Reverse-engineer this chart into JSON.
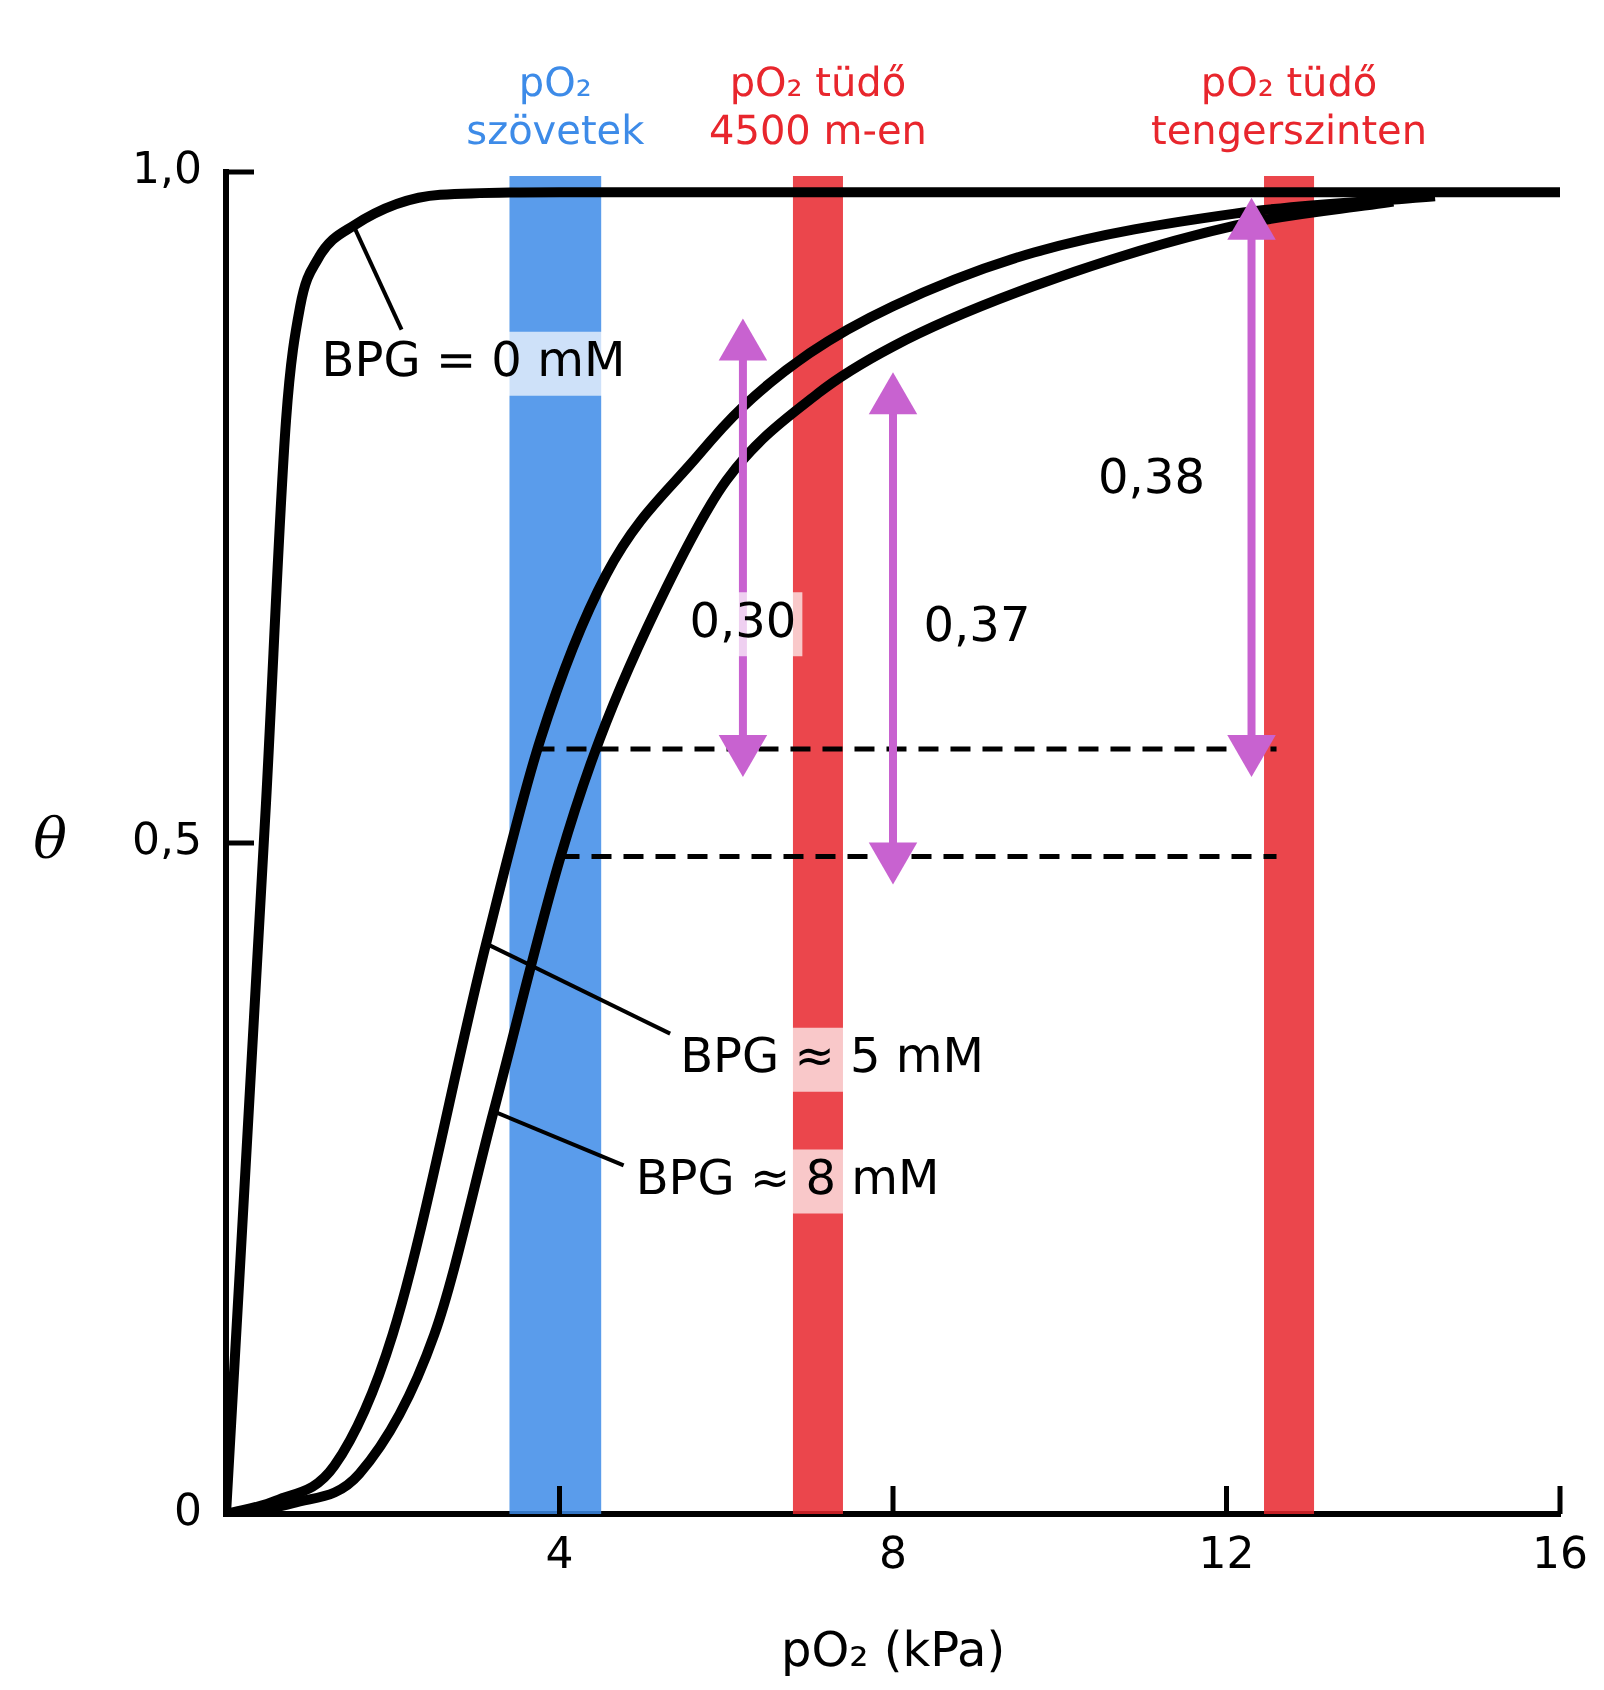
{
  "chart_data": {
    "type": "line",
    "xlabel": "pO₂ (kPa)",
    "ylabel": "θ",
    "xlim": [
      0,
      16
    ],
    "xticks": [
      4,
      8,
      12,
      16
    ],
    "ylim": [
      0,
      1
    ],
    "yticks": [
      0,
      {
        "value": 0.5,
        "label": "0,5"
      },
      {
        "value": 1,
        "label": "1,0"
      }
    ],
    "grid": false,
    "legend": false,
    "marker": "none",
    "series": [
      {
        "color": "#000000",
        "x": [
          0,
          0.48,
          0.72,
          0.89,
          1.1,
          1.53,
          2.57,
          4,
          8,
          16
        ],
        "values": [
          0,
          0.53,
          0.815,
          0.9,
          0.935,
          0.96,
          0.983,
          0.985,
          0.985,
          0.985
        ]
      },
      {
        "color": "#000000",
        "x": [
          0,
          0.6,
          1.3,
          2.0,
          3.12,
          3.77,
          4.56,
          5.68,
          6.2,
          7.0,
          8,
          9.69,
          12.1,
          14.5
        ],
        "values": [
          0,
          0.01,
          0.036,
          0.134,
          0.425,
          0.577,
          0.7,
          0.79,
          0.825,
          0.865,
          0.9,
          0.94,
          0.969,
          0.982
        ]
      },
      {
        "color": "#000000",
        "x": [
          0.05,
          0.8,
          1.6,
          2.5,
          3.21,
          4.0,
          4.48,
          5.28,
          6.0,
          7.1,
          8,
          9.69,
          12.1,
          14
        ],
        "values": [
          0,
          0.008,
          0.03,
          0.134,
          0.3,
          0.487,
          0.577,
          0.69,
          0.77,
          0.835,
          0.87,
          0.915,
          0.96,
          0.978
        ]
      },
      {
        "color": "#000000",
        "line_style": "dashed",
        "x": [
          3.7,
          12.6
        ],
        "values": [
          0.57,
          0.57
        ]
      },
      {
        "color": "#000000",
        "line_style": "dashed",
        "x": [
          4.0,
          12.6
        ],
        "values": [
          0.49,
          0.49
        ]
      },
      {
        "color": "#c862d0",
        "marker": "triangle",
        "x": [
          6.2,
          6.2
        ],
        "values": [
          0.57,
          0.87
        ]
      },
      {
        "color": "#c862d0",
        "marker": "triangle",
        "x": [
          8.0,
          8.0
        ],
        "values": [
          0.49,
          0.83
        ]
      },
      {
        "color": "#c862d0",
        "marker": "triangle",
        "x": [
          12.3,
          12.3
        ],
        "values": [
          0.57,
          0.96
        ]
      }
    ],
    "bands": [
      {
        "axis": "x",
        "from": 3.4,
        "to": 4.5,
        "label": "pO₂\nszövetek",
        "color": "#3d8be8"
      },
      {
        "axis": "x",
        "from": 6.8,
        "to": 7.4,
        "label": "pO₂ tüdő\n4500 m-en",
        "color": "#e8262d"
      },
      {
        "axis": "x",
        "from": 12.45,
        "to": 13.05,
        "label": "pO₂ tüdő\ntengerszinten",
        "color": "#e8262d"
      }
    ],
    "annotations": [
      {
        "text": "BPG = 0 mM",
        "x": 1.53,
        "y": 0.96
      },
      {
        "text": "BPG ≈ 5 mM",
        "x": 3.12,
        "y": 0.425
      },
      {
        "text": "BPG ≈ 8 mM",
        "x": 3.21,
        "y": 0.3
      },
      {
        "text": "0,30",
        "x": 6.2,
        "y": 0.663
      },
      {
        "text": "0,37",
        "x": 8.0,
        "y": 0.66
      },
      {
        "text": "0,38",
        "x": 12.3,
        "y": 0.77
      }
    ]
  }
}
